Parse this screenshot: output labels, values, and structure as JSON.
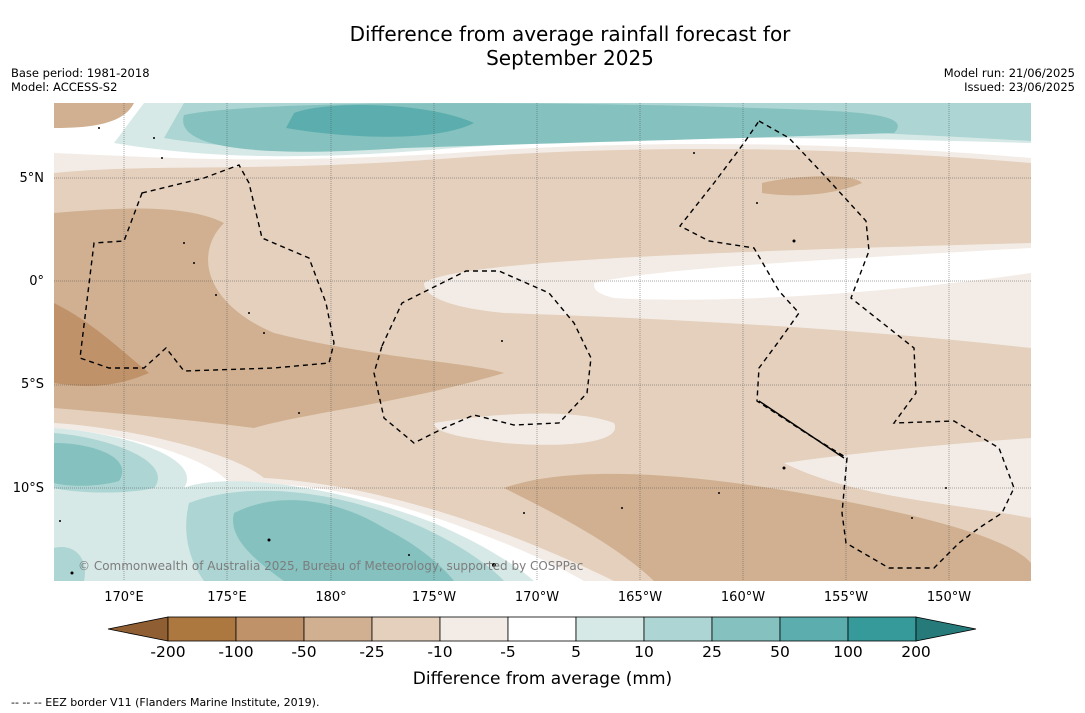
{
  "title_line1": "Difference from average rainfall forecast for",
  "title_line2": "September 2025",
  "meta_left": [
    "Base period: 1981-2018",
    "Model: ACCESS-S2"
  ],
  "meta_right": [
    "Model run: 21/06/2025",
    "Issued: 23/06/2025"
  ],
  "lat_labels": [
    "5°N",
    "0°",
    "5°S",
    "10°S"
  ],
  "lon_labels": [
    "170°E",
    "175°E",
    "180°",
    "175°W",
    "170°W",
    "165°W",
    "160°W",
    "155°W",
    "150°W"
  ],
  "copyright": "© Commonwealth of Australia 2025, Bureau of Meteorology, supported by COSPPac",
  "colorbar": {
    "ticks": [
      "-200",
      "-100",
      "-50",
      "-25",
      "-10",
      "-5",
      "5",
      "10",
      "25",
      "50",
      "100",
      "200"
    ],
    "colors": [
      "#8f5f33",
      "#ad783f",
      "#bf926a",
      "#d0b090",
      "#e4d0bc",
      "#f3ece6",
      "#ffffff",
      "#d6e9e7",
      "#acd5d3",
      "#84c1bf",
      "#5baead",
      "#359a99",
      "#267a79"
    ],
    "title": "Difference from average (mm)"
  },
  "footnote": "--  --  -- EEZ border V11 (Flanders Marine Institute, 2019)."
}
